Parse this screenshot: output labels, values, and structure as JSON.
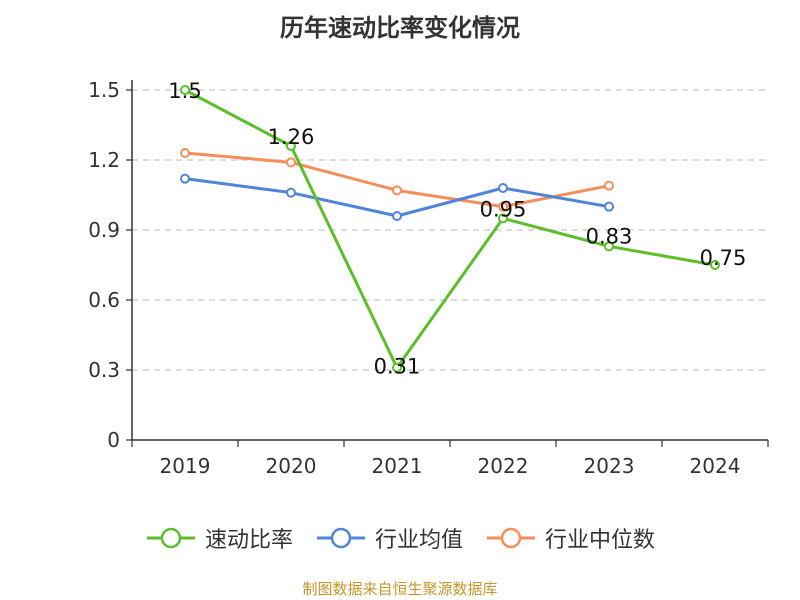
{
  "chart_data": {
    "type": "line",
    "title": "历年速动比率变化情况",
    "categories": [
      "2019",
      "2020",
      "2021",
      "2022",
      "2023",
      "2024"
    ],
    "yticks": [
      "0",
      "0.3",
      "0.6",
      "0.9",
      "1.2",
      "1.5"
    ],
    "ylim": [
      0,
      1.5
    ],
    "grid": true,
    "legend_position": "bottom",
    "series": [
      {
        "name": "速动比率",
        "color": "#5cbf2a",
        "values": [
          1.5,
          1.26,
          0.31,
          0.95,
          0.83,
          0.75
        ],
        "labels": [
          "1.5",
          "1.26",
          "0.31",
          "0.95",
          "0.83",
          "0.75"
        ]
      },
      {
        "name": "行业均值",
        "color": "#4f84d9",
        "values": [
          1.12,
          1.06,
          0.96,
          1.08,
          1.0,
          null
        ]
      },
      {
        "name": "行业中位数",
        "color": "#f68e59",
        "values": [
          1.23,
          1.19,
          1.07,
          1.0,
          1.09,
          null
        ]
      }
    ]
  },
  "source_text": "制图数据来自恒生聚源数据库"
}
